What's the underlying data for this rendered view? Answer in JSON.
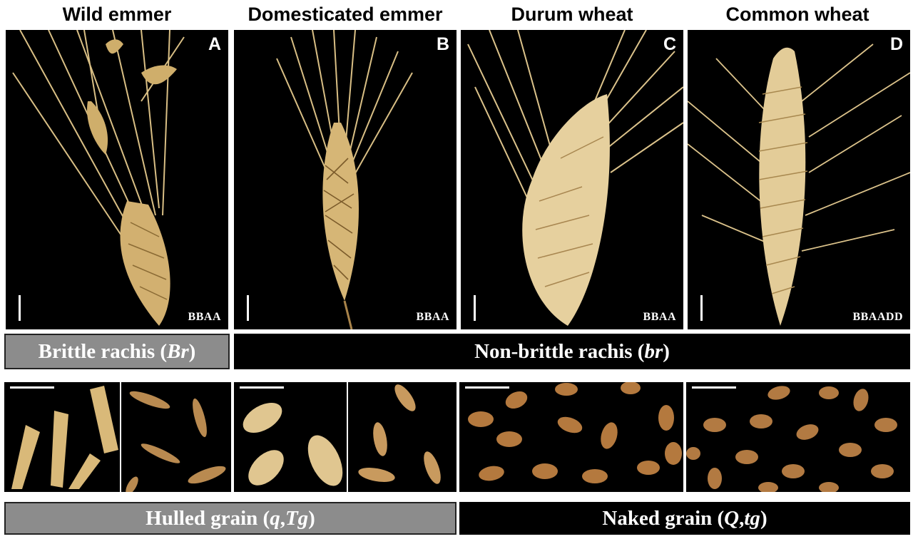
{
  "columns": [
    {
      "title": "Wild emmer",
      "letter": "A",
      "genome": "BBAA"
    },
    {
      "title": "Domesticated emmer",
      "letter": "B",
      "genome": "BBAA"
    },
    {
      "title": "Durum wheat",
      "letter": "C",
      "genome": "BBAA"
    },
    {
      "title": "Common wheat",
      "letter": "D",
      "genome": "BBAADD"
    }
  ],
  "rachis": {
    "brittle": {
      "text": "Brittle rachis (",
      "allele": "Br",
      "close": ")"
    },
    "nonbrittle": {
      "text": "Non-brittle rachis (",
      "allele": "br",
      "close": ")"
    }
  },
  "grain": {
    "hulled": {
      "text": "Hulled grain (",
      "allele1": "q",
      "sep": ", ",
      "allele2": "Tg",
      "close": ")"
    },
    "naked": {
      "text": "Naked grain (",
      "allele1": "Q",
      "sep": ", ",
      "allele2": "tg",
      "close": ")"
    }
  },
  "colors": {
    "panel_bg": "#000000",
    "straw": "#e6cf9a",
    "grain": "#b9824a",
    "banner_gray": "#8c8c8c"
  }
}
